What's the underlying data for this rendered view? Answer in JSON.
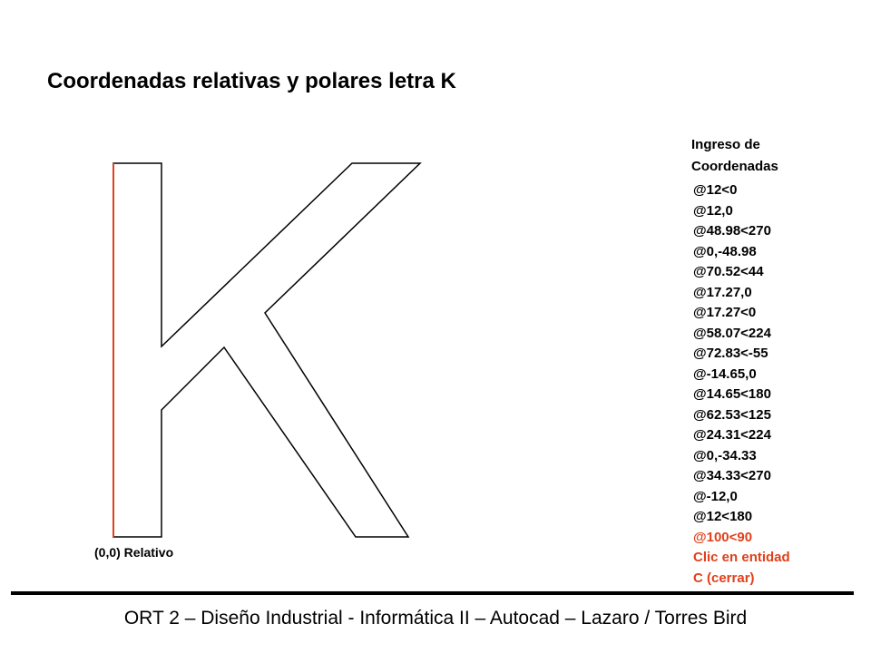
{
  "title": "Coordenadas relativas y polares letra K",
  "origin_label": "(0,0) Relativo",
  "panel": {
    "heading": "Ingreso de Coordenadas",
    "commands": [
      "@12<0",
      "@12,0",
      "@48.98<270",
      "@0,-48.98",
      "@70.52<44",
      "@17.27,0",
      "@17.27<0",
      "@58.07<224",
      "@72.83<-55",
      "@-14.65,0",
      "@14.65<180",
      "@62.53<125",
      "@24.31<224",
      "@0,-34.33",
      "@34.33<270",
      "@-12,0",
      "@12<180"
    ],
    "final_steps": [
      "@100<90",
      "Clic en entidad",
      "C (cerrar)"
    ]
  },
  "footer": "ORT 2 – Diseño Industrial - Informática II – Autocad – Lazaro / Torres Bird"
}
